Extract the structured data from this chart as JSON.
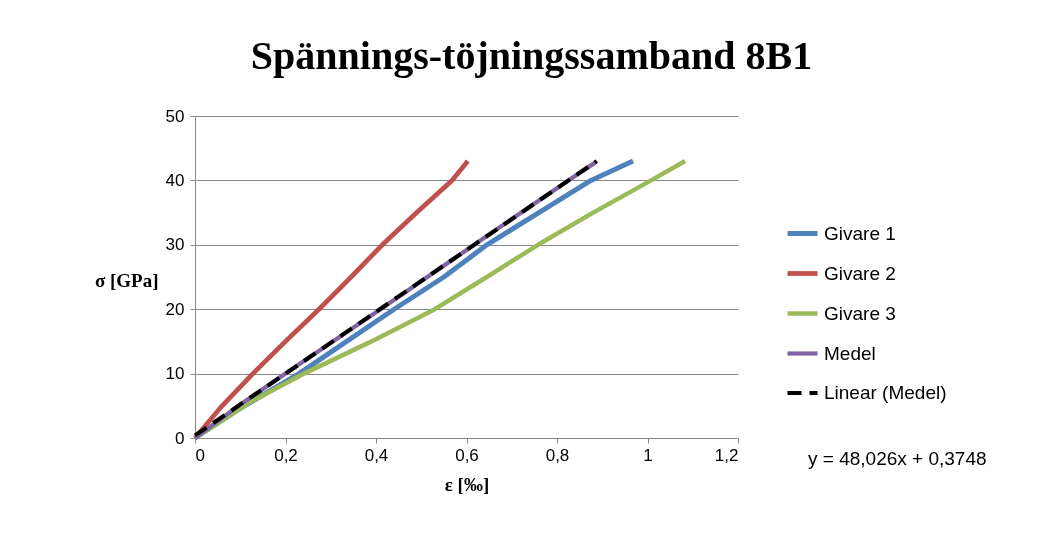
{
  "chart_data": {
    "type": "line",
    "title": "Spännings-töjningssamband 8B1",
    "xlabel": "ε [‰]",
    "ylabel": "σ [GPa]",
    "xlim": [
      0,
      1.2
    ],
    "xticks": [
      0,
      {
        "value": 0.2,
        "label": "0,2"
      },
      {
        "value": 0.4,
        "label": "0,4"
      },
      {
        "value": 0.6,
        "label": "0,6"
      },
      {
        "value": 0.8,
        "label": "0,8"
      },
      1,
      {
        "value": 1.2,
        "label": "1,2"
      }
    ],
    "ylim": [
      0,
      50
    ],
    "yticks": [
      0,
      10,
      20,
      30,
      40,
      50
    ],
    "grid": "y",
    "legend": "right",
    "marker": "none",
    "annotations": [
      "y = 48,026x + 0,3748"
    ],
    "series": [
      {
        "name": "Givare 1",
        "color": "#4f81bd",
        "line_style": "solid",
        "x": [
          0,
          0.1,
          0.23,
          0.44,
          0.55,
          0.645,
          0.76,
          0.875,
          0.968
        ],
        "values": [
          0,
          4.6,
          10,
          20,
          25,
          30,
          35,
          40,
          43
        ]
      },
      {
        "name": "Givare 2",
        "color": "#c0504d",
        "line_style": "solid",
        "x": [
          0,
          0.06,
          0.128,
          0.2,
          0.274,
          0.345,
          0.414,
          0.49,
          0.568,
          0.603
        ],
        "values": [
          0,
          5,
          10,
          15,
          20,
          25,
          30,
          35,
          40,
          43
        ]
      },
      {
        "name": "Givare 3",
        "color": "#9bbb59",
        "line_style": "solid",
        "x": [
          0,
          0.12,
          0.241,
          0.39,
          0.53,
          0.645,
          0.758,
          0.88,
          1.008,
          1.083
        ],
        "values": [
          0,
          5.5,
          10,
          15,
          20,
          25,
          30,
          35,
          40,
          43
        ]
      },
      {
        "name": "Medel",
        "color": "#8064a2",
        "line_style": "solid",
        "x": [
          0,
          0.1,
          0.2,
          0.41,
          0.617,
          0.825,
          0.885
        ],
        "values": [
          0,
          5.2,
          10,
          20,
          30,
          40,
          42.8
        ]
      },
      {
        "name": "Linear (Medel)",
        "color": "#000000",
        "line_style": "dashed",
        "x": [
          0,
          0.888
        ],
        "values": [
          0.4,
          43.0
        ]
      }
    ]
  }
}
